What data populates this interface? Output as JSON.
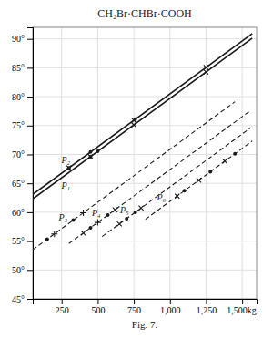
{
  "chart_data": {
    "type": "line",
    "title": "CH₂Br·CHBr·COOH",
    "xlabel": "Fig. 7.",
    "xlim": [
      50,
      1600
    ],
    "ylim": [
      45,
      92
    ],
    "xticks": [
      250,
      500,
      750,
      {
        "value": 1000,
        "label": "1,000"
      },
      {
        "value": 1250,
        "label": "1,250"
      },
      {
        "value": 1500,
        "label": "1,500kg."
      }
    ],
    "yticks": [
      {
        "value": 45,
        "label": "45°"
      },
      {
        "value": 50,
        "label": "50°"
      },
      {
        "value": 55,
        "label": "55°"
      },
      {
        "value": 60,
        "label": "60°"
      },
      {
        "value": 65,
        "label": "65°"
      },
      {
        "value": 70,
        "label": "70°"
      },
      {
        "value": 75,
        "label": "75°"
      },
      {
        "value": 80,
        "label": "80°"
      },
      {
        "value": 85,
        "label": "85°"
      },
      {
        "value": 90,
        "label": "90°"
      }
    ],
    "grid": true,
    "color": "#1a1a1a",
    "series": [
      {
        "name": "P₂",
        "type": "line",
        "line_style": "solid",
        "x": [
          50,
          1570
        ],
        "values": [
          63.1,
          90.916
        ]
      },
      {
        "name": "P₁",
        "type": "line",
        "line_style": "solid",
        "x": [
          50,
          1570
        ],
        "values": [
          62.3,
          90.116
        ]
      },
      {
        "name": "P₃",
        "type": "line",
        "line_style": "dashed",
        "x": [
          50,
          1450
        ],
        "values": [
          53.5,
          79.12
        ]
      },
      {
        "name": "P₄",
        "type": "line",
        "line_style": "dashed",
        "x": [
          300,
          1560
        ],
        "values": [
          54.575,
          77.633
        ]
      },
      {
        "name": "P₅",
        "type": "line",
        "line_style": "dashed",
        "x": [
          530,
          1560
        ],
        "values": [
          55.784,
          74.633
        ]
      },
      {
        "name": "P₆",
        "type": "line",
        "line_style": "dashed",
        "x": [
          830,
          1570
        ],
        "values": [
          58.774,
          72.316
        ]
      },
      {
        "type": "scatter",
        "marker": "x",
        "x": [
          300,
          750,
          1250
        ],
        "values": [
          67.675,
          75.91,
          85.06
        ]
      },
      {
        "type": "scatter",
        "marker": "dot",
        "x": [
          300,
          450,
          760
        ],
        "values": [
          67.675,
          70.42,
          76.093
        ]
      },
      {
        "type": "scatter",
        "marker": "x",
        "x": [
          450,
          750,
          1250
        ],
        "values": [
          69.62,
          75.11,
          84.26
        ]
      },
      {
        "type": "scatter",
        "marker": "dot",
        "x": [
          450,
          500
        ],
        "values": [
          69.62,
          70.535
        ]
      },
      {
        "type": "scatter",
        "marker": "plus",
        "x": [
          200,
          400
        ],
        "values": [
          56.245,
          59.905
        ]
      },
      {
        "type": "scatter",
        "marker": "dot",
        "x": [
          150,
          330
        ],
        "values": [
          55.33,
          58.624
        ]
      },
      {
        "type": "scatter",
        "marker": "plus",
        "x": [
          500
        ],
        "values": [
          58.235
        ]
      },
      {
        "type": "scatter",
        "marker": "x",
        "x": [
          400,
          620
        ],
        "values": [
          56.405,
          60.431
        ]
      },
      {
        "type": "scatter",
        "marker": "dot",
        "x": [
          450,
          570
        ],
        "values": [
          57.32,
          59.516
        ]
      },
      {
        "type": "scatter",
        "marker": "x",
        "x": [
          650,
          800
        ],
        "values": [
          57.98,
          60.725
        ]
      },
      {
        "type": "scatter",
        "marker": "dot",
        "x": [
          700,
          760
        ],
        "values": [
          58.895,
          59.993
        ]
      },
      {
        "type": "scatter",
        "marker": "x",
        "x": [
          1050,
          1200,
          1380
        ],
        "values": [
          62.8,
          65.545,
          68.839
        ]
      },
      {
        "type": "scatter",
        "marker": "dot",
        "x": [
          1100,
          1280,
          1450
        ],
        "values": [
          63.715,
          67.009,
          70.12
        ]
      }
    ]
  }
}
